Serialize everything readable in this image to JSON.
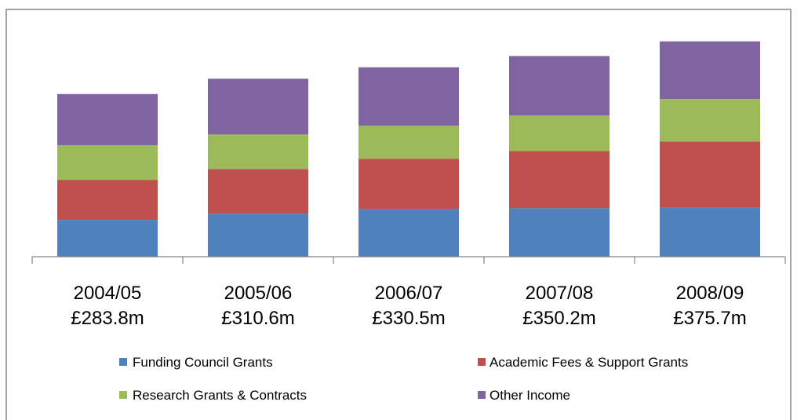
{
  "chart_data": {
    "type": "bar",
    "stacked": true,
    "categories": [
      "2004/05",
      "2005/06",
      "2006/07",
      "2007/08",
      "2008/09"
    ],
    "category_totals": [
      "£283.8m",
      "£310.6m",
      "£330.5m",
      "£350.2m",
      "£375.7m"
    ],
    "series": [
      {
        "name": "Funding Council Grants",
        "color": "#4F81BD",
        "values": [
          64.3,
          75.2,
          83.4,
          84.8,
          86.2
        ]
      },
      {
        "name": "Academic Fees & Support Grants",
        "color": "#C0504D",
        "values": [
          69.8,
          78.0,
          87.6,
          99.9,
          114.9
        ]
      },
      {
        "name": "Research Grants & Contracts",
        "color": "#9BBB59",
        "values": [
          60.2,
          60.2,
          57.5,
          61.6,
          73.9
        ]
      },
      {
        "name": "Other Income",
        "color": "#8064A2",
        "values": [
          89.5,
          97.2,
          102.0,
          103.9,
          100.7
        ]
      }
    ],
    "ylim": [
      0,
      400
    ],
    "y_axis_visible": false,
    "grid": false,
    "legend": "bottom"
  }
}
